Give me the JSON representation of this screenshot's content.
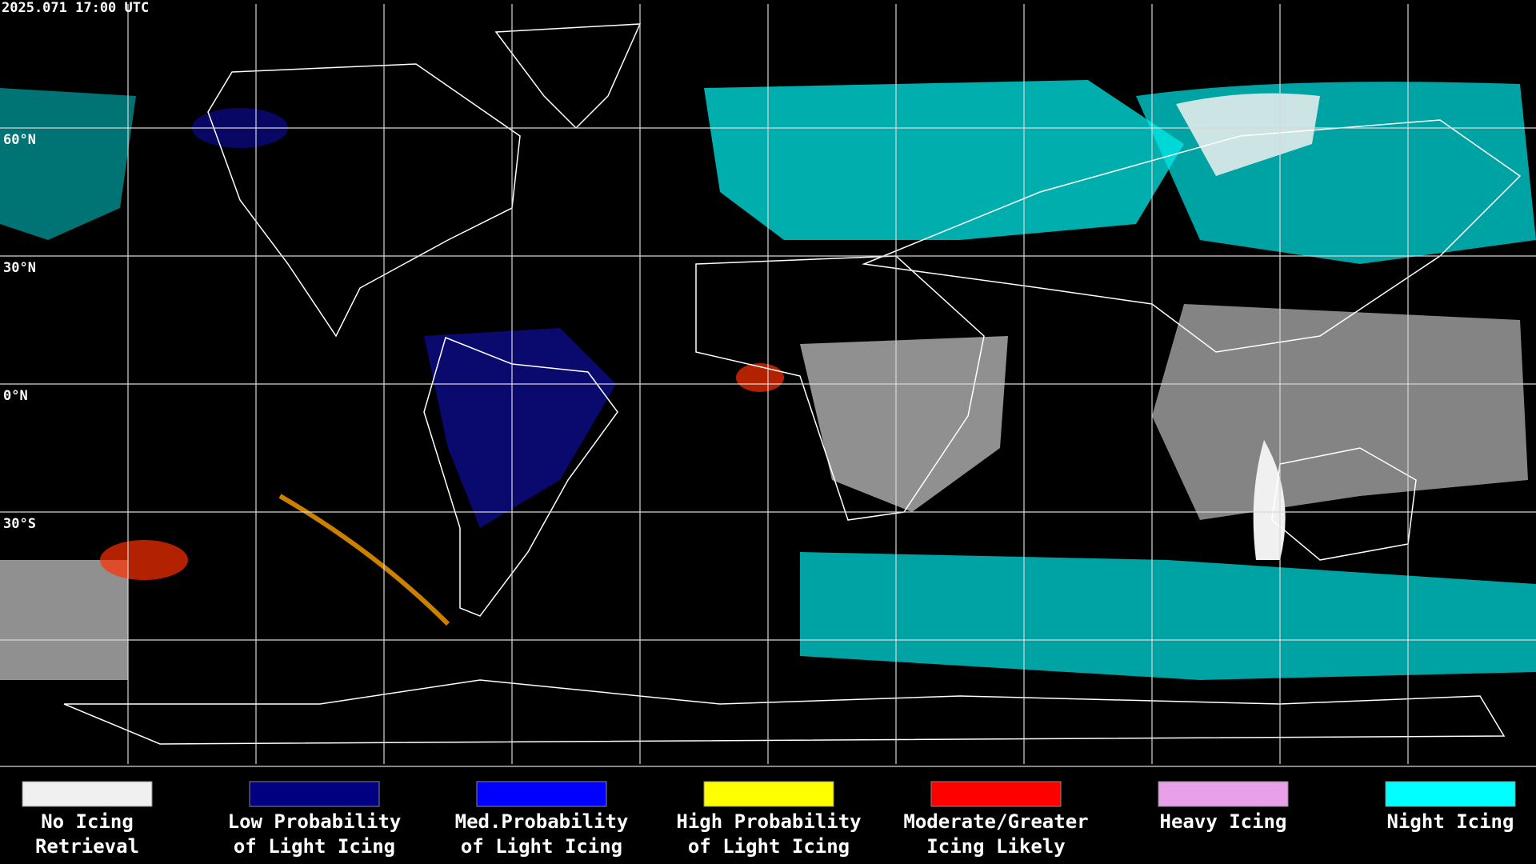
{
  "header": {
    "timestamp": "2025.071 17:00 UTC"
  },
  "map": {
    "latitude_labels": [
      "60°N",
      "30°N",
      "0°N",
      "30°S"
    ]
  },
  "legend": {
    "items": [
      {
        "color": "#f0f0f0",
        "lines": [
          "No Icing",
          "Retrieval"
        ]
      },
      {
        "color": "#000080",
        "lines": [
          "Low Probability",
          "of Light Icing"
        ]
      },
      {
        "color": "#0000ff",
        "lines": [
          "Med.Probability",
          "of Light Icing"
        ]
      },
      {
        "color": "#ffff00",
        "lines": [
          "High Probability",
          "of Light Icing"
        ]
      },
      {
        "color": "#ff0000",
        "lines": [
          "Moderate/Greater",
          "Icing Likely"
        ]
      },
      {
        "color": "#e8a0e8",
        "lines": [
          "Heavy Icing"
        ]
      },
      {
        "color": "#00ffff",
        "lines": [
          "Night Icing"
        ]
      }
    ]
  }
}
